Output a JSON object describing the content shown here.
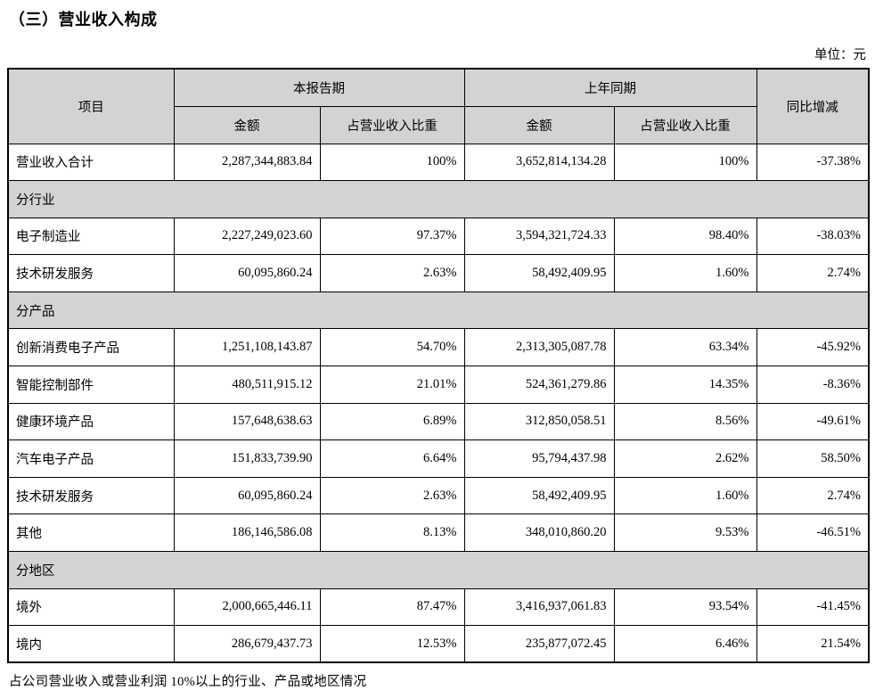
{
  "page": {
    "title": "（三）营业收入构成",
    "unit_label": "单位：元",
    "footer_note": "占公司营业收入或营业利润 10%以上的行业、产品或地区情况"
  },
  "colors": {
    "header_bg": "#d3d3d3",
    "section_bg": "#d3d3d3",
    "border": "#000000",
    "text": "#000000"
  },
  "table": {
    "headers": {
      "item": "项目",
      "current_period": "本报告期",
      "prior_period": "上年同期",
      "amount": "金额",
      "proportion": "占营业收入比重",
      "yoy_change": "同比增减"
    },
    "rows": [
      {
        "type": "data",
        "label": "营业收入合计",
        "cur_amount": "2,287,344,883.84",
        "cur_pct": "100%",
        "prev_amount": "3,652,814,134.28",
        "prev_pct": "100%",
        "yoy": "-37.38%"
      },
      {
        "type": "section",
        "label": "分行业"
      },
      {
        "type": "data",
        "label": "电子制造业",
        "cur_amount": "2,227,249,023.60",
        "cur_pct": "97.37%",
        "prev_amount": "3,594,321,724.33",
        "prev_pct": "98.40%",
        "yoy": "-38.03%"
      },
      {
        "type": "data",
        "label": "技术研发服务",
        "cur_amount": "60,095,860.24",
        "cur_pct": "2.63%",
        "prev_amount": "58,492,409.95",
        "prev_pct": "1.60%",
        "yoy": "2.74%"
      },
      {
        "type": "section",
        "label": "分产品"
      },
      {
        "type": "data",
        "label": "创新消费电子产品",
        "cur_amount": "1,251,108,143.87",
        "cur_pct": "54.70%",
        "prev_amount": "2,313,305,087.78",
        "prev_pct": "63.34%",
        "yoy": "-45.92%"
      },
      {
        "type": "data",
        "label": "智能控制部件",
        "cur_amount": "480,511,915.12",
        "cur_pct": "21.01%",
        "prev_amount": "524,361,279.86",
        "prev_pct": "14.35%",
        "yoy": "-8.36%"
      },
      {
        "type": "data",
        "label": "健康环境产品",
        "cur_amount": "157,648,638.63",
        "cur_pct": "6.89%",
        "prev_amount": "312,850,058.51",
        "prev_pct": "8.56%",
        "yoy": "-49.61%"
      },
      {
        "type": "data",
        "label": "汽车电子产品",
        "cur_amount": "151,833,739.90",
        "cur_pct": "6.64%",
        "prev_amount": "95,794,437.98",
        "prev_pct": "2.62%",
        "yoy": "58.50%"
      },
      {
        "type": "data",
        "label": "技术研发服务",
        "cur_amount": "60,095,860.24",
        "cur_pct": "2.63%",
        "prev_amount": "58,492,409.95",
        "prev_pct": "1.60%",
        "yoy": "2.74%"
      },
      {
        "type": "data",
        "label": "其他",
        "cur_amount": "186,146,586.08",
        "cur_pct": "8.13%",
        "prev_amount": "348,010,860.20",
        "prev_pct": "9.53%",
        "yoy": "-46.51%"
      },
      {
        "type": "section",
        "label": "分地区"
      },
      {
        "type": "data",
        "label": "境外",
        "cur_amount": "2,000,665,446.11",
        "cur_pct": "87.47%",
        "prev_amount": "3,416,937,061.83",
        "prev_pct": "93.54%",
        "yoy": "-41.45%"
      },
      {
        "type": "data",
        "label": "境内",
        "cur_amount": "286,679,437.73",
        "cur_pct": "12.53%",
        "prev_amount": "235,877,072.45",
        "prev_pct": "6.46%",
        "yoy": "21.54%"
      }
    ]
  }
}
